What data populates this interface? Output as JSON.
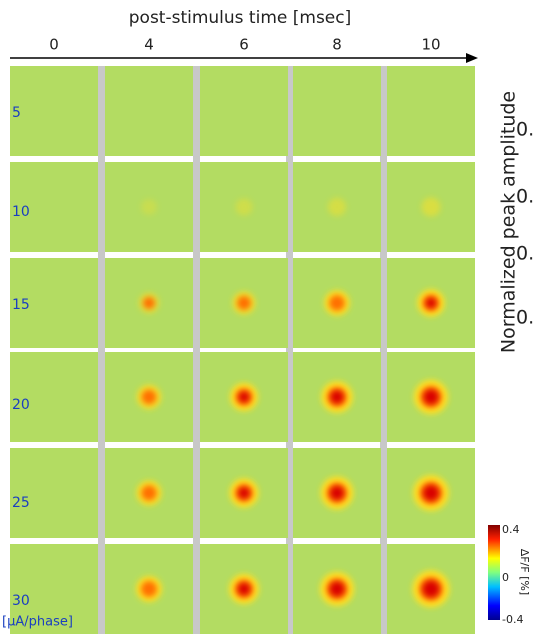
{
  "figure": {
    "axis_title": "post-stimulus time [msec]",
    "columns": [
      "0",
      "4",
      "6",
      "8",
      "10"
    ],
    "rows": [
      "5",
      "10",
      "15",
      "20",
      "25",
      "30"
    ],
    "row_unit": "[μA/phase]",
    "colorbar": {
      "label": "∆F/F [%]",
      "ticks": [
        "0.4",
        "0",
        "-0.4"
      ]
    },
    "side_panel": {
      "label": "Normalized peak amplitude",
      "ticks": [
        "0.",
        "0.",
        "0.",
        "0."
      ]
    }
  }
}
